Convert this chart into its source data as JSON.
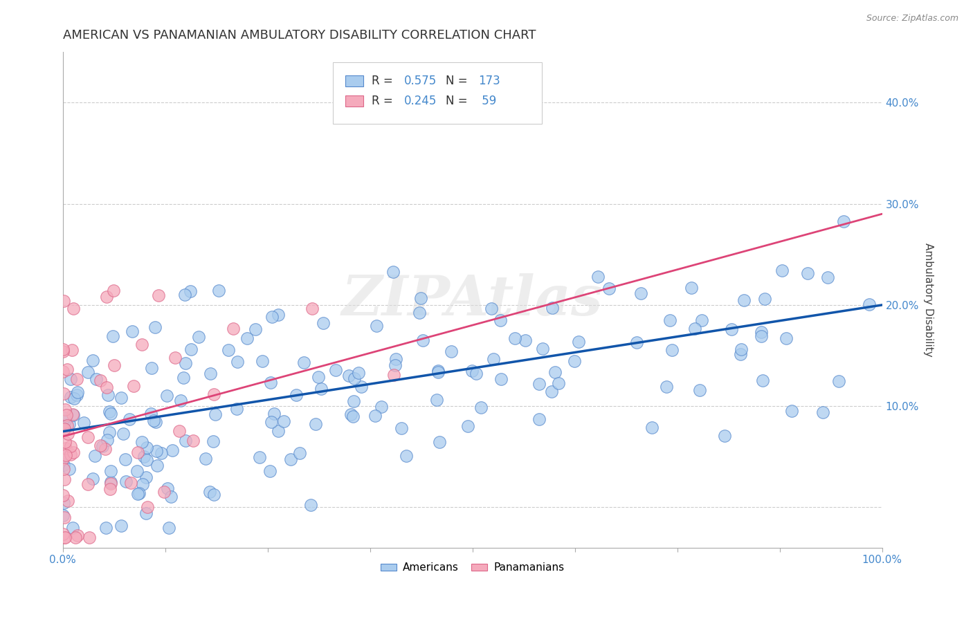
{
  "title": "AMERICAN VS PANAMANIAN AMBULATORY DISABILITY CORRELATION CHART",
  "source": "Source: ZipAtlas.com",
  "ylabel": "Ambulatory Disability",
  "watermark": "ZIPAtlas",
  "americans": {
    "R": 0.575,
    "N": 173,
    "color": "#AACCEE",
    "edge_color": "#5588CC",
    "line_color": "#1155AA",
    "intercept": 0.075,
    "slope": 0.125
  },
  "panamanians": {
    "R": 0.245,
    "N": 59,
    "color": "#F5AABC",
    "edge_color": "#DD6688",
    "line_color": "#DD4477",
    "intercept": 0.07,
    "slope": 0.22
  },
  "xlim": [
    0.0,
    1.0
  ],
  "ylim": [
    -0.04,
    0.45
  ],
  "yticks": [
    0.0,
    0.1,
    0.2,
    0.3,
    0.4
  ],
  "ytick_labels": [
    "",
    "10.0%",
    "20.0%",
    "30.0%",
    "40.0%"
  ],
  "xtick_labels": [
    "0.0%",
    "",
    "",
    "",
    "",
    "",
    "",
    "",
    "100.0%"
  ],
  "grid_color": "#CCCCCC",
  "bg_color": "#FFFFFF",
  "title_fontsize": 13,
  "axis_label_fontsize": 11,
  "tick_fontsize": 11,
  "tick_color": "#4488CC",
  "legend_fontsize": 12
}
